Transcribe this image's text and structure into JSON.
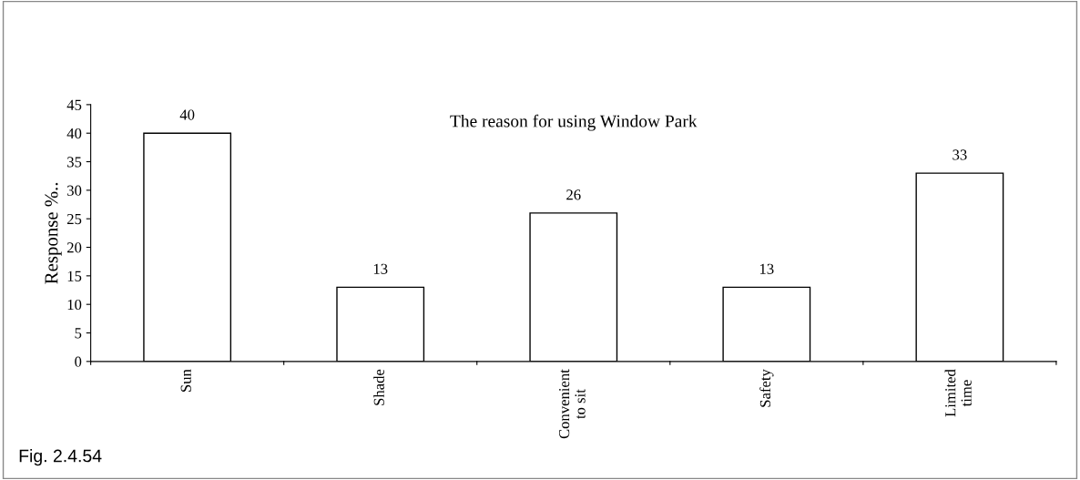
{
  "chart_data": {
    "type": "bar",
    "title": "The reason for using Window Park",
    "ylabel": "Response %..",
    "categories": [
      "Sun",
      "Shade",
      "Convenient\nto sit",
      "Safety",
      "Limited\ntime"
    ],
    "values": [
      40,
      13,
      26,
      13,
      33
    ],
    "color": "#ffffff",
    "ylim": [
      0,
      45
    ],
    "yticks": [
      0,
      5,
      10,
      15,
      20,
      25,
      30,
      35,
      40,
      45
    ],
    "data_labels": true,
    "grid": false,
    "legend": false,
    "annotations": [
      "Fig. 2.4.54"
    ]
  }
}
